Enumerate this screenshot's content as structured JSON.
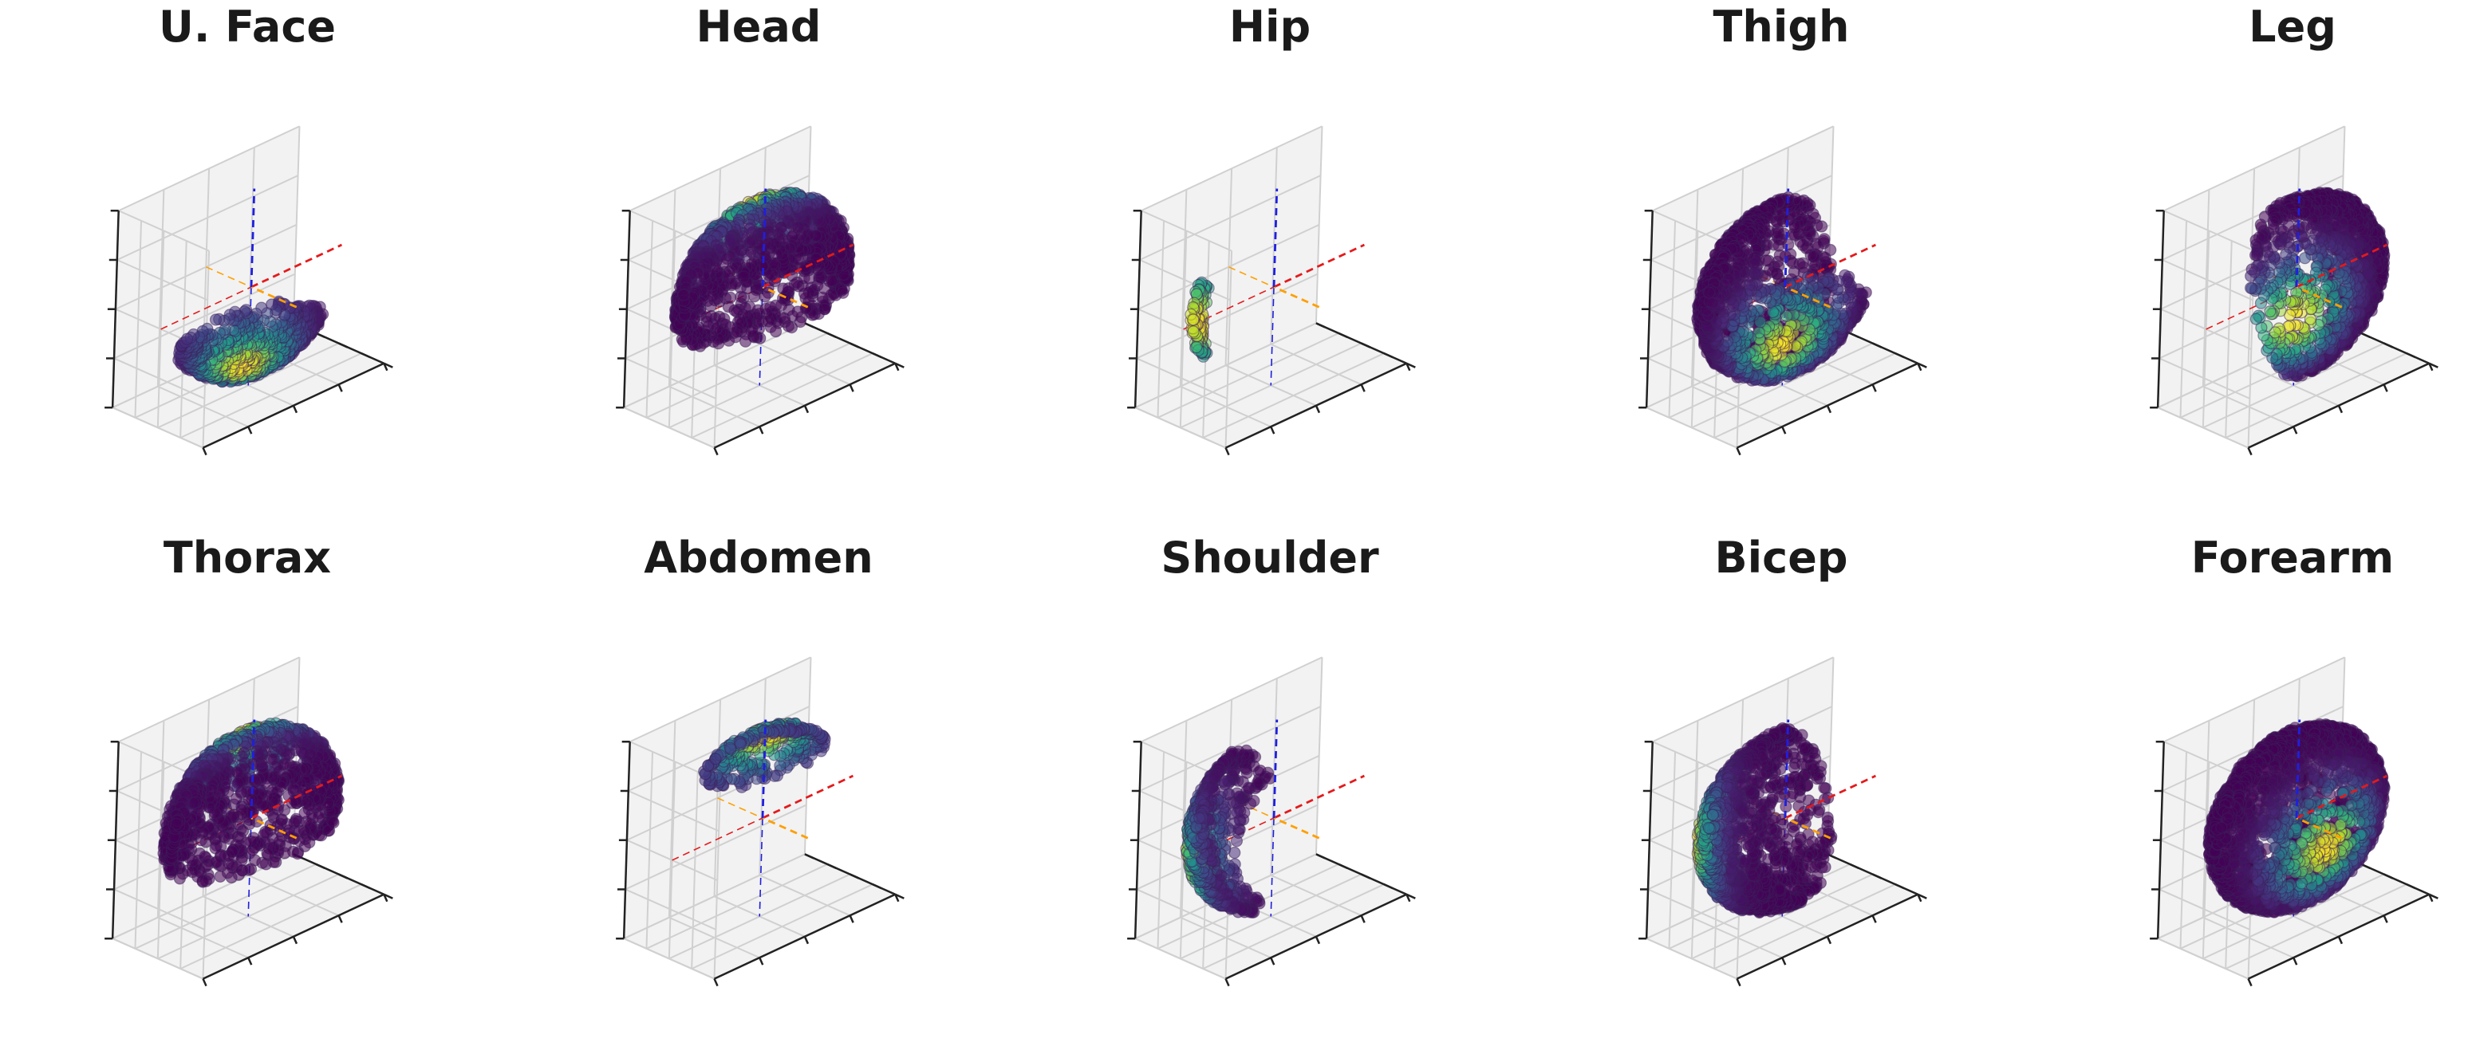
{
  "chart_data": {
    "type": "scatter",
    "subtype": "3d-scatter-on-unit-sphere-grid",
    "layout": "2 rows x 5 columns",
    "colormap": "viridis (dark purple = low density, yellow = high density)",
    "axes": {
      "x_axis_color": "#e41a1c",
      "y_axis_color": "#ff9f00",
      "z_axis_color": "#1f1fdf",
      "grid": true,
      "tick_labels": false,
      "pane_color": "#f2f2f2"
    },
    "panels": [
      {
        "title": "U. Face",
        "region": "lower cap (bowl)",
        "density_peak": "bottom of bowl"
      },
      {
        "title": "Head",
        "region": "upper hemisphere",
        "density_peak": "top"
      },
      {
        "title": "Hip",
        "region": "thin arc on left side",
        "density_peak": "middle of arc"
      },
      {
        "title": "Thigh",
        "region": "left and lower hemisphere",
        "density_peak": "lower front"
      },
      {
        "title": "Leg",
        "region": "right half shell",
        "density_peak": "lower front"
      },
      {
        "title": "Thorax",
        "region": "upper hemisphere",
        "density_peak": "top"
      },
      {
        "title": "Abdomen",
        "region": "small upper cap",
        "density_peak": "top"
      },
      {
        "title": "Shoulder",
        "region": "left side band",
        "density_peak": "left middle"
      },
      {
        "title": "Bicep",
        "region": "left half shell",
        "density_peak": "left edge"
      },
      {
        "title": "Forearm",
        "region": "full sphere",
        "density_peak": "lower right front"
      }
    ]
  }
}
